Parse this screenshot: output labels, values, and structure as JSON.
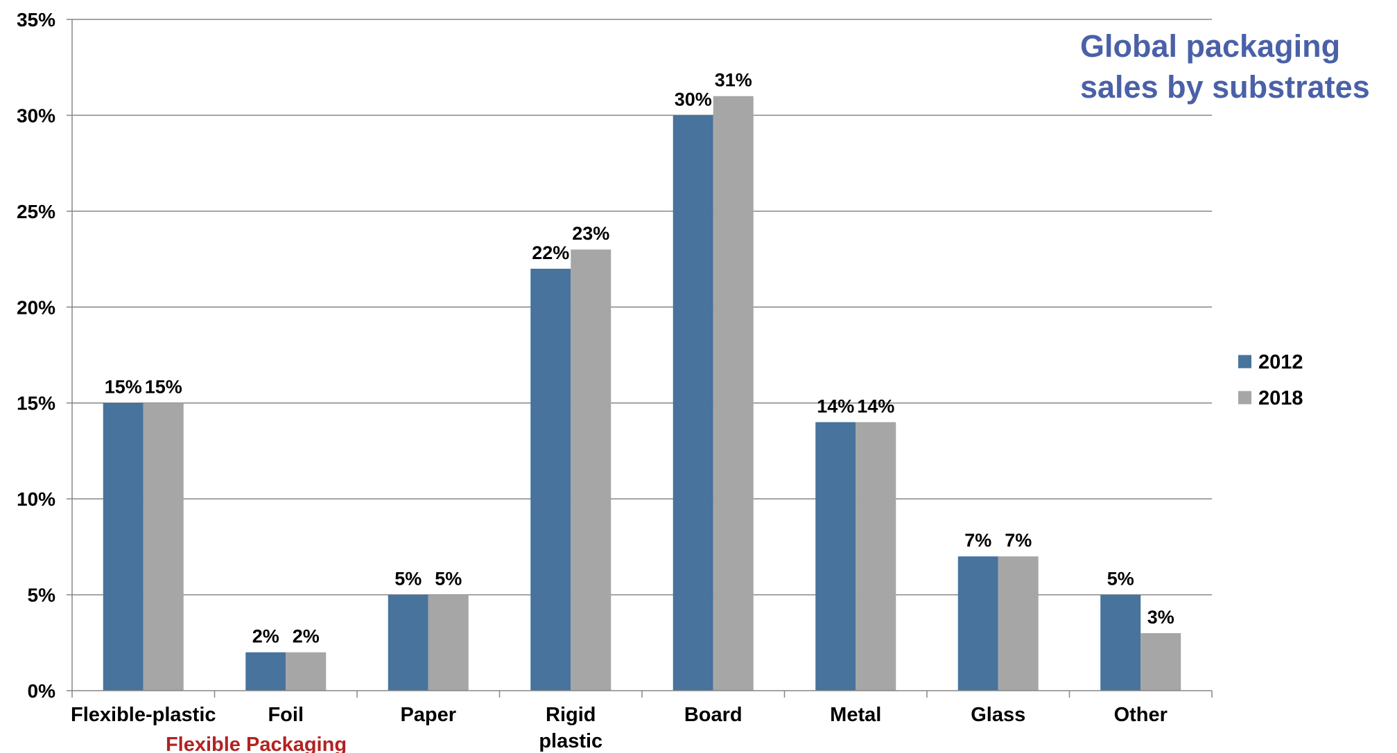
{
  "chart_data": {
    "type": "bar",
    "title_lines": [
      "Global packaging",
      "sales by substrates"
    ],
    "categories": [
      [
        "Flexible-plastic"
      ],
      [
        "Foil"
      ],
      [
        "Paper"
      ],
      [
        "Rigid",
        "plastic"
      ],
      [
        "Board"
      ],
      [
        "Metal"
      ],
      [
        "Glass"
      ],
      [
        "Other"
      ]
    ],
    "series": [
      {
        "name": "2012",
        "color": "#47739C",
        "values": [
          15,
          2,
          5,
          22,
          30,
          14,
          7,
          5
        ],
        "labels": [
          "15%",
          "2%",
          "5%",
          "22%",
          "30%",
          "14%",
          "7%",
          "5%"
        ]
      },
      {
        "name": "2018",
        "color": "#A6A6A6",
        "values": [
          15,
          2,
          5,
          23,
          31,
          14,
          7,
          3
        ],
        "labels": [
          "15%",
          "2%",
          "5%",
          "23%",
          "31%",
          "14%",
          "7%",
          "3%"
        ]
      }
    ],
    "ylim": [
      0,
      35
    ],
    "yticks": [
      0,
      5,
      10,
      15,
      20,
      25,
      30,
      35
    ],
    "ytick_labels": [
      "0%",
      "5%",
      "10%",
      "15%",
      "20%",
      "25%",
      "30%",
      "35%"
    ],
    "grid": true,
    "legend_position": "right",
    "annotation": "Flexible Packaging",
    "title_color": "#4A61A8",
    "annotation_color": "#B22222",
    "grid_color": "#868686",
    "axis_color": "#868686"
  }
}
